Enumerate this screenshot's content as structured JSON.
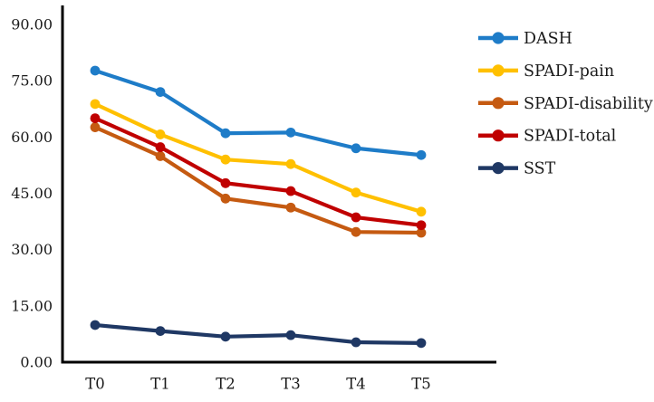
{
  "figure": {
    "background": "#ffffff",
    "axis_color": "#000000",
    "text_color": "#1a1a1a"
  },
  "chart_data": {
    "type": "line",
    "title": "",
    "xlabel": "",
    "ylabel": "",
    "x_categories": [
      "T0",
      "T1",
      "T2",
      "T3",
      "T4",
      "T5"
    ],
    "series": [
      {
        "name": "DASH",
        "color": "#1E7CC8",
        "values": [
          77.7,
          72.0,
          61.0,
          61.2,
          57.0,
          55.2
        ]
      },
      {
        "name": "SPADI-pain",
        "color": "#FFC000",
        "values": [
          68.8,
          60.7,
          54.0,
          52.8,
          45.2,
          40.1
        ]
      },
      {
        "name": "SPADI-disability",
        "color": "#C55A11",
        "values": [
          62.6,
          54.9,
          43.6,
          41.2,
          34.7,
          34.5
        ]
      },
      {
        "name": "SPADI-total",
        "color": "#C00000",
        "values": [
          65.0,
          57.3,
          47.7,
          45.6,
          38.6,
          36.5
        ]
      },
      {
        "name": "SST",
        "color": "#1F3864",
        "values": [
          9.9,
          8.3,
          6.8,
          7.2,
          5.3,
          5.1
        ]
      }
    ],
    "ylim": [
      0,
      90
    ],
    "ytick_step": 15,
    "ytick_labels": [
      "0.00",
      "15.00",
      "30.00",
      "45.00",
      "60.00",
      "75.00",
      "90.00"
    ],
    "grid": false,
    "legend_position": "right",
    "legend_entries": [
      "DASH",
      "SPADI-pain",
      "SPADI-disability",
      "SPADI-total",
      "SST"
    ]
  }
}
